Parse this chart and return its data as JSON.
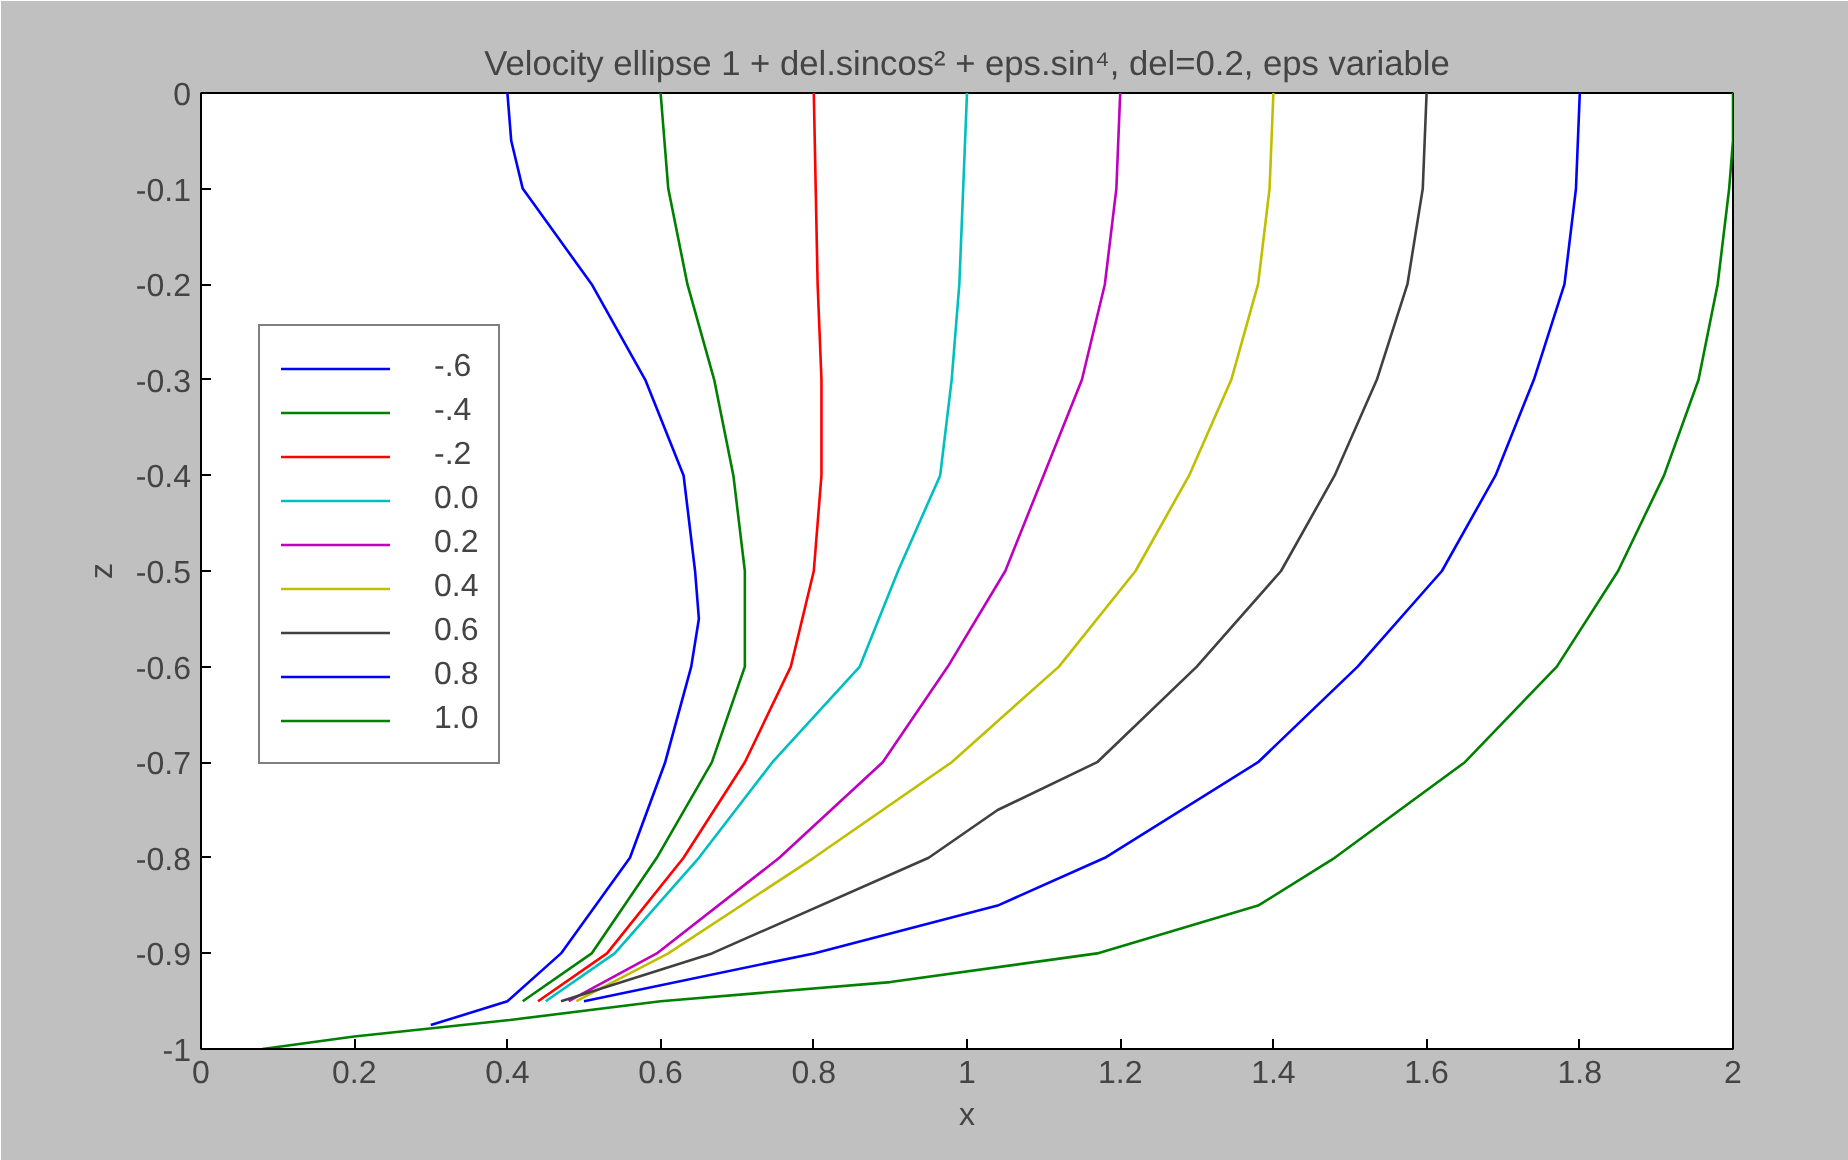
{
  "chart_data": {
    "type": "line",
    "title": "Velocity ellipse 1 + del.sincos² + eps.sin⁴, del=0.2, eps variable",
    "xlabel": "x",
    "ylabel": "z",
    "xlim": [
      0,
      2
    ],
    "ylim": [
      -1,
      0
    ],
    "xticks": [
      0,
      0.2,
      0.4,
      0.6,
      0.8,
      1,
      1.2,
      1.4,
      1.6,
      1.8,
      2
    ],
    "yticks": [
      0,
      -0.1,
      -0.2,
      -0.3,
      -0.4,
      -0.5,
      -0.6,
      -0.7,
      -0.8,
      -0.9,
      -1
    ],
    "grid": false,
    "legend": "top left",
    "marker": "none",
    "line_style": "solid",
    "series": [
      {
        "name": "-.6",
        "color": "#0000ff",
        "x": [
          0.4,
          0.405,
          0.42,
          0.51,
          0.58,
          0.63,
          0.645,
          0.65,
          0.64,
          0.606,
          0.56,
          0.47,
          0.4,
          0.3
        ],
        "values": [
          0,
          -0.05,
          -0.1,
          -0.2,
          -0.3,
          -0.4,
          -0.5,
          -0.55,
          -0.6,
          -0.7,
          -0.8,
          -0.9,
          -0.95,
          -0.975
        ]
      },
      {
        "name": "-.4",
        "color": "#008000",
        "x": [
          0.6,
          0.61,
          0.635,
          0.67,
          0.695,
          0.71,
          0.71,
          0.667,
          0.595,
          0.51,
          0.42
        ],
        "values": [
          0,
          -0.1,
          -0.2,
          -0.3,
          -0.4,
          -0.5,
          -0.6,
          -0.7,
          -0.8,
          -0.9,
          -0.95
        ]
      },
      {
        "name": "-.2",
        "color": "#ff0000",
        "x": [
          0.8,
          0.805,
          0.81,
          0.81,
          0.8,
          0.77,
          0.71,
          0.63,
          0.53,
          0.44
        ],
        "values": [
          0,
          -0.2,
          -0.3,
          -0.4,
          -0.5,
          -0.6,
          -0.7,
          -0.8,
          -0.9,
          -0.95
        ]
      },
      {
        "name": "0.0",
        "color": "#00bfbf",
        "x": [
          1.0,
          0.995,
          0.99,
          0.98,
          0.965,
          0.91,
          0.86,
          0.746,
          0.65,
          0.54,
          0.45
        ],
        "values": [
          0,
          -0.1,
          -0.2,
          -0.3,
          -0.4,
          -0.5,
          -0.6,
          -0.7,
          -0.8,
          -0.9,
          -0.95
        ]
      },
      {
        "name": "0.2",
        "color": "#bf00bf",
        "x": [
          1.2,
          1.195,
          1.18,
          1.15,
          1.1,
          1.05,
          0.975,
          0.89,
          0.755,
          0.595,
          0.48
        ],
        "values": [
          0,
          -0.1,
          -0.2,
          -0.3,
          -0.4,
          -0.5,
          -0.6,
          -0.7,
          -0.8,
          -0.9,
          -0.95
        ]
      },
      {
        "name": "0.4",
        "color": "#bfbf00",
        "x": [
          1.4,
          1.395,
          1.38,
          1.345,
          1.29,
          1.22,
          1.12,
          0.98,
          0.8,
          0.61,
          0.49
        ],
        "values": [
          0,
          -0.1,
          -0.2,
          -0.3,
          -0.4,
          -0.5,
          -0.6,
          -0.7,
          -0.8,
          -0.9,
          -0.95
        ]
      },
      {
        "name": "0.6",
        "color": "#404040",
        "x": [
          1.6,
          1.595,
          1.575,
          1.535,
          1.48,
          1.41,
          1.3,
          1.17,
          1.04,
          0.95,
          0.667,
          0.47
        ],
        "values": [
          0,
          -0.1,
          -0.2,
          -0.3,
          -0.4,
          -0.5,
          -0.6,
          -0.7,
          -0.75,
          -0.8,
          -0.9,
          -0.95
        ]
      },
      {
        "name": "0.8",
        "color": "#0000ff",
        "x": [
          1.8,
          1.795,
          1.78,
          1.74,
          1.69,
          1.62,
          1.51,
          1.38,
          1.18,
          1.04,
          0.8,
          0.5
        ],
        "values": [
          0,
          -0.1,
          -0.2,
          -0.3,
          -0.4,
          -0.5,
          -0.6,
          -0.7,
          -0.8,
          -0.85,
          -0.9,
          -0.95
        ]
      },
      {
        "name": "1.0",
        "color": "#008000",
        "x": [
          2.0,
          2.0,
          1.995,
          1.98,
          1.955,
          1.91,
          1.85,
          1.77,
          1.65,
          1.48,
          1.38,
          1.17,
          0.9,
          0.6,
          0.4,
          0.2,
          0.08
        ],
        "values": [
          0,
          -0.05,
          -0.1,
          -0.2,
          -0.3,
          -0.4,
          -0.5,
          -0.6,
          -0.7,
          -0.8,
          -0.85,
          -0.9,
          -0.93,
          -0.95,
          -0.97,
          -0.987,
          -1
        ]
      }
    ]
  }
}
